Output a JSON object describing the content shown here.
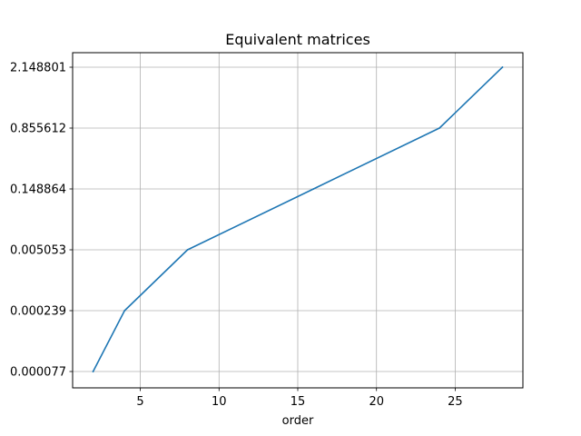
{
  "chart_data": {
    "type": "line",
    "title": "Equivalent matrices",
    "xlabel": "order",
    "ylabel": "",
    "x_ticks": [
      5,
      10,
      15,
      20,
      25
    ],
    "y_ticks": [
      "0.000077",
      "0.000239",
      "0.005053",
      "0.148864",
      "0.855612",
      "2.148801"
    ],
    "grid": true,
    "series": [
      {
        "color": "#1f77b4",
        "points": [
          {
            "x": 2,
            "y": "0.000077"
          },
          {
            "x": 4,
            "y": "0.000239"
          },
          {
            "x": 8,
            "y": "0.005053"
          },
          {
            "x": 16,
            "y": "0.148864"
          },
          {
            "x": 24,
            "y": "0.855612"
          },
          {
            "x": 28,
            "y": "2.148801"
          }
        ]
      }
    ]
  }
}
